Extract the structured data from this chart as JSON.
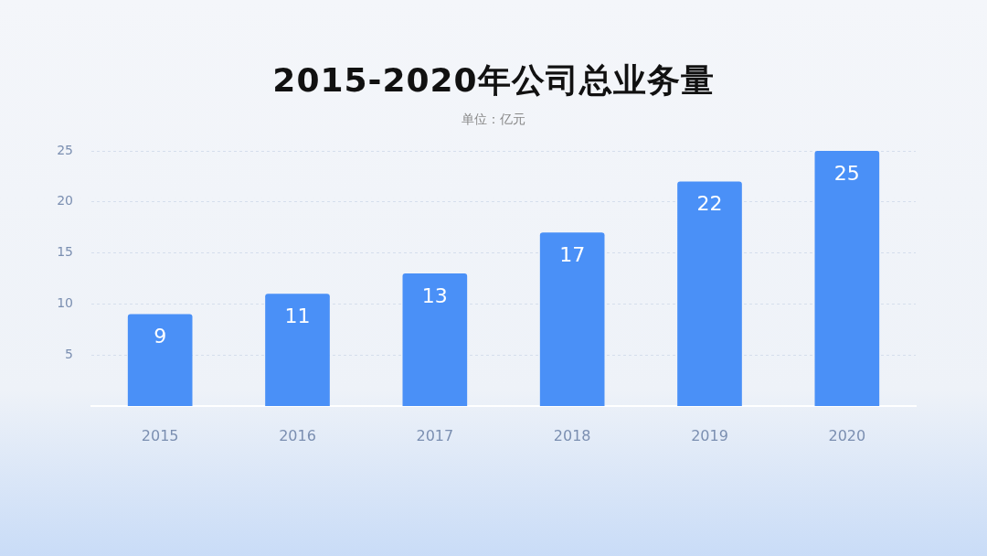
{
  "chart_data": {
    "type": "bar",
    "title": "2015-2020年公司总业务量",
    "subtitle": "单位：亿元",
    "categories": [
      "2015",
      "2016",
      "2017",
      "2018",
      "2019",
      "2020"
    ],
    "values": [
      9,
      11,
      13,
      17,
      22,
      25
    ],
    "color": "#4a90f7",
    "ylim": [
      0,
      25
    ],
    "yticks": [
      5,
      10,
      15,
      20,
      25
    ],
    "grid": "y",
    "data_labels": true
  }
}
